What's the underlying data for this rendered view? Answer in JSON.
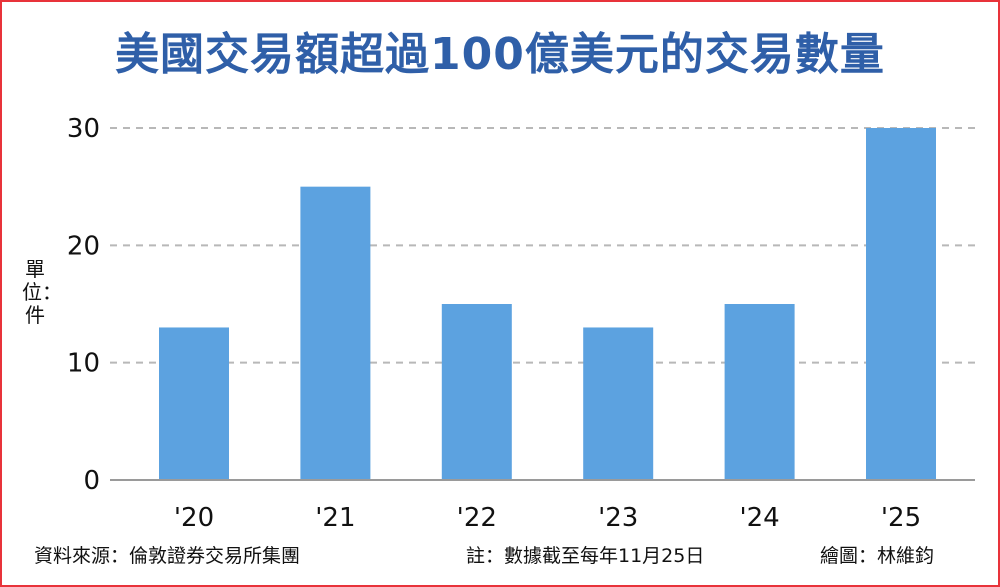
{
  "chart_data": {
    "type": "bar",
    "title": "美國交易額超過100億美元的交易數量",
    "ylabel": "單位：件",
    "categories": [
      "'20",
      "'21",
      "'22",
      "'23",
      "'24",
      "'25"
    ],
    "values": [
      13,
      25,
      15,
      13,
      15,
      30
    ],
    "ylim": [
      0,
      30
    ],
    "yticks": [
      0,
      10,
      20,
      30
    ],
    "grid": true,
    "bar_color": "#5ca2e0"
  },
  "footer": {
    "source": "資料來源：倫敦證券交易所集團",
    "note": "註：數據截至每年11月25日",
    "credit": "繪圖：林維鈞"
  }
}
